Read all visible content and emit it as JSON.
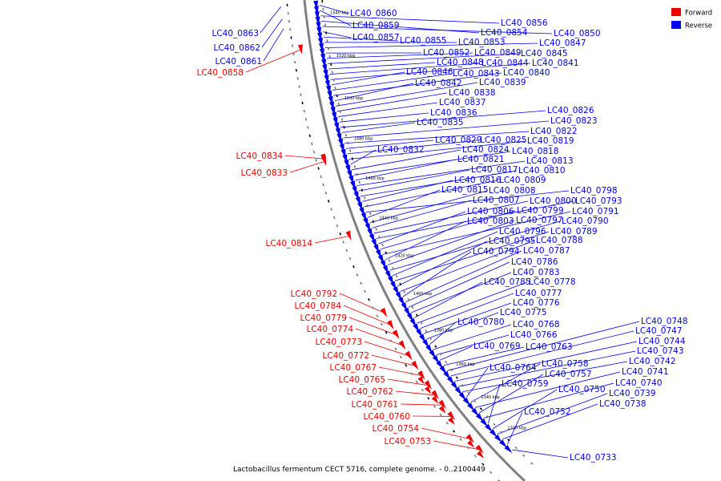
{
  "colors": {
    "forward": "#ee0000",
    "reverse": "#0000ee",
    "backbone": "#808080",
    "tick": "#000000"
  },
  "legend": [
    {
      "name": "Forward",
      "color": "#ee0000"
    },
    {
      "name": "Reverse",
      "color": "#0000ee"
    }
  ],
  "caption": "Lactobacillus fermentum CECT 5716, complete genome. - 0..2100449",
  "ruler": [
    "1540 kbp",
    "1520 kbp",
    "1500 kbp",
    "1480 kbp",
    "1460 kbp",
    "1440 kbp",
    "1420 kbp",
    "1400 kbp",
    "1380 kbp",
    "1360 kbp",
    "1340 kbp",
    "1320 kbp"
  ],
  "forward_genes": [
    "LC40_0858",
    "LC40_0834",
    "LC40_0833",
    "LC40_0814",
    "LC40_0792",
    "LC40_0784",
    "LC40_0779",
    "LC40_0774",
    "LC40_0773",
    "LC40_0772",
    "LC40_0767",
    "LC40_0765",
    "LC40_0762",
    "LC40_0761",
    "LC40_0760",
    "LC40_0754",
    "LC40_0753"
  ],
  "reverse_genes_left": [
    "LC40_0863",
    "LC40_0862",
    "LC40_0861"
  ],
  "reverse_genes": [
    "LC40_0860",
    "LC40_0859",
    "LC40_0856",
    "LC40_0854",
    "LC40_0850",
    "LC40_0857",
    "LC40_0855",
    "LC40_0853",
    "LC40_0847",
    "LC40_0852",
    "LC40_0849",
    "LC40_0845",
    "LC40_0848",
    "LC40_0844",
    "LC40_0841",
    "LC40_0846",
    "LC40_0843",
    "LC40_0840",
    "LC40_0842",
    "LC40_0839",
    "LC40_0838",
    "LC40_0837",
    "LC40_0836",
    "LC40_0826",
    "LC40_0835",
    "LC40_0823",
    "LC40_0822",
    "LC40_0829",
    "LC40_0825",
    "LC40_0819",
    "LC40_0832",
    "LC40_0824",
    "LC40_0818",
    "LC40_0821",
    "LC40_0813",
    "LC40_0817",
    "LC40_0810",
    "LC40_0816",
    "LC40_0809",
    "LC40_0798",
    "LC40_0815",
    "LC40_0808",
    "LC40_0807",
    "LC40_0800",
    "LC40_0793",
    "LC40_0806",
    "LC40_0799",
    "LC40_0791",
    "LC40_0803",
    "LC40_0797",
    "LC40_0790",
    "LC40_0796",
    "LC40_0789",
    "LC40_0795",
    "LC40_0788",
    "LC40_0794",
    "LC40_0787",
    "LC40_0786",
    "LC40_0783",
    "LC40_0785",
    "LC40_0778",
    "LC40_0777",
    "LC40_0776",
    "LC40_0775",
    "LC40_0780",
    "LC40_0768",
    "LC40_0766",
    "LC40_0769",
    "LC40_0763",
    "LC40_0748",
    "LC40_0747",
    "LC40_0744",
    "LC40_0743",
    "LC40_0742",
    "LC40_0764",
    "LC40_0758",
    "LC40_0741",
    "LC40_0757",
    "LC40_0740",
    "LC40_0759",
    "LC40_0750",
    "LC40_0739",
    "LC40_0738",
    "LC40_0752",
    "LC40_0733"
  ]
}
